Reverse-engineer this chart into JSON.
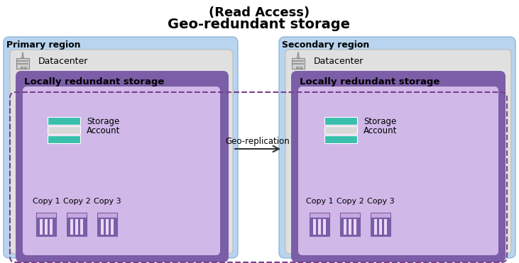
{
  "title_line1": "(Read Access)",
  "title_line2": "Geo-redundant storage",
  "primary_label": "Primary region",
  "secondary_label": "Secondary region",
  "datacenter_label": "Datacenter",
  "lrs_label": "Locally redundant storage",
  "storage_label1": "Storage",
  "storage_label2": "Account",
  "copies": [
    "Copy 1",
    "Copy 2",
    "Copy 3"
  ],
  "geo_replication_label": "Geo-replication",
  "bg_color": "#ffffff",
  "region_bg": "#b8d4ee",
  "datacenter_bg": "#e0e0e0",
  "lrs_outer_bg": "#7b5ea7",
  "lrs_inner_bg": "#d0b8e8",
  "dashed_border_color": "#7b3f8c",
  "arrow_color": "#333333",
  "storage_teal": "#3bbfad",
  "storage_gray": "#d8d8d8",
  "copy_purple_dark": "#7b5ea7",
  "copy_purple_light": "#c8a8e0",
  "copy_stripe": "#e8d8f8"
}
